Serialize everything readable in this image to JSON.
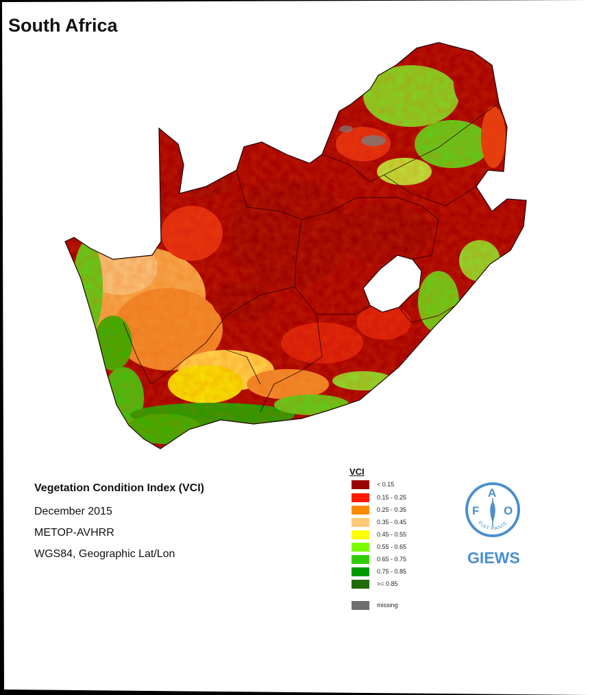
{
  "map": {
    "title": "South Africa",
    "info": {
      "index_name": "Vegetation Condition Index (VCI)",
      "period": "December 2015",
      "sensor": "METOP-AVHRR",
      "projection": "WGS84, Geographic Lat/Lon"
    }
  },
  "legend": {
    "title": "VCI",
    "classes": [
      {
        "label": "< 0.15",
        "color": "#990000"
      },
      {
        "label": "0.15 - 0.25",
        "color": "#ff1a00"
      },
      {
        "label": "0.25 - 0.35",
        "color": "#ff8c00"
      },
      {
        "label": "0.35 - 0.45",
        "color": "#ffc977"
      },
      {
        "label": "0.45 - 0.55",
        "color": "#ffff00"
      },
      {
        "label": "0.55 - 0.65",
        "color": "#7cfc00"
      },
      {
        "label": "0.65 - 0.75",
        "color": "#33cc00"
      },
      {
        "label": "0.75 - 0.85",
        "color": "#009900"
      },
      {
        "label": ">= 0.85",
        "color": "#226b0a"
      }
    ],
    "missing": {
      "label": "missing",
      "color": "#6e6e6e"
    }
  },
  "logo": {
    "letters": [
      "F",
      "A",
      "O"
    ],
    "motto": "FIAT PANIS",
    "program": "GIEWS",
    "color": "#4a8fce"
  }
}
